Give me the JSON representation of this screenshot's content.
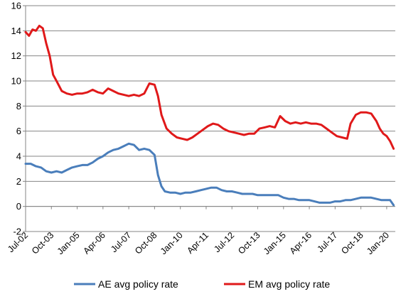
{
  "chart_data": {
    "type": "line",
    "title": "",
    "xlabel": "",
    "ylabel": "",
    "ylim": [
      -2,
      16
    ],
    "y_ticks": [
      "-2",
      "0",
      "2",
      "4",
      "6",
      "8",
      "10",
      "12",
      "14",
      "16"
    ],
    "x_range": [
      "2002-07",
      "2020-06"
    ],
    "x_ticks": [
      {
        "date": "2002-07",
        "label": "Jul-02"
      },
      {
        "date": "2003-10",
        "label": "Oct-03"
      },
      {
        "date": "2005-01",
        "label": "Jan-05"
      },
      {
        "date": "2006-04",
        "label": "Apr-06"
      },
      {
        "date": "2007-07",
        "label": "Jul-07"
      },
      {
        "date": "2008-10",
        "label": "Oct-08"
      },
      {
        "date": "2010-01",
        "label": "Jan-10"
      },
      {
        "date": "2011-04",
        "label": "Apr-11"
      },
      {
        "date": "2012-07",
        "label": "Jul-12"
      },
      {
        "date": "2013-10",
        "label": "Oct-13"
      },
      {
        "date": "2015-01",
        "label": "Jan-15"
      },
      {
        "date": "2016-04",
        "label": "Apr-16"
      },
      {
        "date": "2017-07",
        "label": "Jul-17"
      },
      {
        "date": "2018-10",
        "label": "Oct-18"
      },
      {
        "date": "2020-01",
        "label": "Jan-20"
      }
    ],
    "grid": "horizontal",
    "legend_position": "bottom",
    "series": [
      {
        "name": "AE avg policy rate",
        "color": "#4a7ebb",
        "points": [
          [
            "2002-07",
            3.4
          ],
          [
            "2002-10",
            3.4
          ],
          [
            "2003-01",
            3.2
          ],
          [
            "2003-04",
            3.1
          ],
          [
            "2003-07",
            2.8
          ],
          [
            "2003-10",
            2.7
          ],
          [
            "2004-01",
            2.8
          ],
          [
            "2004-04",
            2.7
          ],
          [
            "2004-07",
            2.9
          ],
          [
            "2004-10",
            3.1
          ],
          [
            "2005-01",
            3.2
          ],
          [
            "2005-04",
            3.3
          ],
          [
            "2005-07",
            3.3
          ],
          [
            "2005-10",
            3.5
          ],
          [
            "2006-01",
            3.8
          ],
          [
            "2006-04",
            4.0
          ],
          [
            "2006-07",
            4.3
          ],
          [
            "2006-10",
            4.5
          ],
          [
            "2007-01",
            4.6
          ],
          [
            "2007-04",
            4.8
          ],
          [
            "2007-07",
            5.0
          ],
          [
            "2007-10",
            4.9
          ],
          [
            "2008-01",
            4.5
          ],
          [
            "2008-04",
            4.6
          ],
          [
            "2008-07",
            4.5
          ],
          [
            "2008-10",
            4.1
          ],
          [
            "2008-12",
            2.5
          ],
          [
            "2009-02",
            1.6
          ],
          [
            "2009-04",
            1.2
          ],
          [
            "2009-07",
            1.1
          ],
          [
            "2009-10",
            1.1
          ],
          [
            "2010-01",
            1.0
          ],
          [
            "2010-04",
            1.1
          ],
          [
            "2010-07",
            1.1
          ],
          [
            "2010-10",
            1.2
          ],
          [
            "2011-01",
            1.3
          ],
          [
            "2011-04",
            1.4
          ],
          [
            "2011-07",
            1.5
          ],
          [
            "2011-10",
            1.5
          ],
          [
            "2012-01",
            1.3
          ],
          [
            "2012-04",
            1.2
          ],
          [
            "2012-07",
            1.2
          ],
          [
            "2012-10",
            1.1
          ],
          [
            "2013-01",
            1.0
          ],
          [
            "2013-04",
            1.0
          ],
          [
            "2013-07",
            1.0
          ],
          [
            "2013-10",
            0.9
          ],
          [
            "2014-01",
            0.9
          ],
          [
            "2014-04",
            0.9
          ],
          [
            "2014-07",
            0.9
          ],
          [
            "2014-10",
            0.9
          ],
          [
            "2015-01",
            0.7
          ],
          [
            "2015-04",
            0.6
          ],
          [
            "2015-07",
            0.6
          ],
          [
            "2015-10",
            0.5
          ],
          [
            "2016-01",
            0.5
          ],
          [
            "2016-04",
            0.5
          ],
          [
            "2016-07",
            0.4
          ],
          [
            "2016-10",
            0.3
          ],
          [
            "2017-01",
            0.3
          ],
          [
            "2017-04",
            0.3
          ],
          [
            "2017-07",
            0.4
          ],
          [
            "2017-10",
            0.4
          ],
          [
            "2018-01",
            0.5
          ],
          [
            "2018-04",
            0.5
          ],
          [
            "2018-07",
            0.6
          ],
          [
            "2018-10",
            0.7
          ],
          [
            "2019-01",
            0.7
          ],
          [
            "2019-04",
            0.7
          ],
          [
            "2019-07",
            0.6
          ],
          [
            "2019-10",
            0.5
          ],
          [
            "2020-01",
            0.5
          ],
          [
            "2020-03",
            0.5
          ],
          [
            "2020-05",
            0.1
          ]
        ]
      },
      {
        "name": "EM avg policy rate",
        "color": "#e0191a",
        "points": [
          [
            "2002-07",
            13.9
          ],
          [
            "2002-09",
            13.6
          ],
          [
            "2002-11",
            14.1
          ],
          [
            "2003-01",
            14.0
          ],
          [
            "2003-03",
            14.4
          ],
          [
            "2003-05",
            14.2
          ],
          [
            "2003-07",
            13.0
          ],
          [
            "2003-09",
            12.0
          ],
          [
            "2003-11",
            10.5
          ],
          [
            "2004-01",
            10.0
          ],
          [
            "2004-04",
            9.2
          ],
          [
            "2004-07",
            9.0
          ],
          [
            "2004-10",
            8.9
          ],
          [
            "2005-01",
            9.0
          ],
          [
            "2005-04",
            9.0
          ],
          [
            "2005-07",
            9.1
          ],
          [
            "2005-10",
            9.3
          ],
          [
            "2006-01",
            9.1
          ],
          [
            "2006-04",
            9.0
          ],
          [
            "2006-07",
            9.4
          ],
          [
            "2006-10",
            9.2
          ],
          [
            "2007-01",
            9.0
          ],
          [
            "2007-04",
            8.9
          ],
          [
            "2007-07",
            8.8
          ],
          [
            "2007-10",
            8.9
          ],
          [
            "2008-01",
            8.8
          ],
          [
            "2008-04",
            9.0
          ],
          [
            "2008-07",
            9.8
          ],
          [
            "2008-10",
            9.7
          ],
          [
            "2008-12",
            8.8
          ],
          [
            "2009-02",
            7.3
          ],
          [
            "2009-05",
            6.2
          ],
          [
            "2009-08",
            5.8
          ],
          [
            "2009-11",
            5.5
          ],
          [
            "2010-02",
            5.4
          ],
          [
            "2010-05",
            5.3
          ],
          [
            "2010-08",
            5.5
          ],
          [
            "2010-11",
            5.8
          ],
          [
            "2011-02",
            6.1
          ],
          [
            "2011-05",
            6.4
          ],
          [
            "2011-08",
            6.6
          ],
          [
            "2011-11",
            6.5
          ],
          [
            "2012-02",
            6.2
          ],
          [
            "2012-05",
            6.0
          ],
          [
            "2012-08",
            5.9
          ],
          [
            "2012-11",
            5.8
          ],
          [
            "2013-02",
            5.7
          ],
          [
            "2013-05",
            5.8
          ],
          [
            "2013-08",
            5.8
          ],
          [
            "2013-11",
            6.2
          ],
          [
            "2014-02",
            6.3
          ],
          [
            "2014-05",
            6.4
          ],
          [
            "2014-08",
            6.3
          ],
          [
            "2014-11",
            7.2
          ],
          [
            "2015-02",
            6.8
          ],
          [
            "2015-05",
            6.6
          ],
          [
            "2015-08",
            6.7
          ],
          [
            "2015-11",
            6.6
          ],
          [
            "2016-02",
            6.7
          ],
          [
            "2016-05",
            6.6
          ],
          [
            "2016-08",
            6.6
          ],
          [
            "2016-11",
            6.5
          ],
          [
            "2017-02",
            6.2
          ],
          [
            "2017-05",
            5.9
          ],
          [
            "2017-08",
            5.6
          ],
          [
            "2017-11",
            5.5
          ],
          [
            "2018-02",
            5.4
          ],
          [
            "2018-04",
            6.6
          ],
          [
            "2018-07",
            7.3
          ],
          [
            "2018-10",
            7.5
          ],
          [
            "2019-01",
            7.5
          ],
          [
            "2019-04",
            7.4
          ],
          [
            "2019-07",
            6.8
          ],
          [
            "2019-09",
            6.2
          ],
          [
            "2019-11",
            5.8
          ],
          [
            "2020-01",
            5.6
          ],
          [
            "2020-03",
            5.2
          ],
          [
            "2020-05",
            4.6
          ]
        ]
      }
    ]
  }
}
